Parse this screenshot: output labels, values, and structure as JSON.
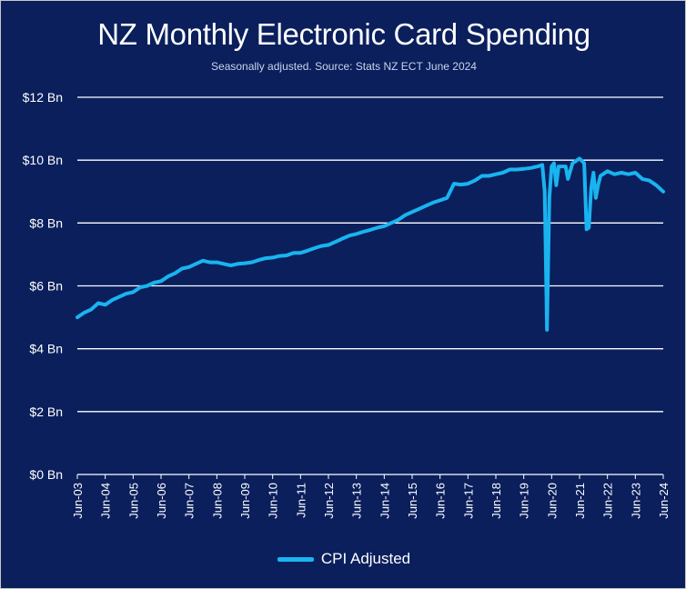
{
  "title": "NZ Monthly Electronic Card Spending",
  "subtitle": "Seasonally adjusted. Source: Stats NZ ECT June 2024",
  "colors": {
    "background": "#0a1f5c",
    "line": "#19b4f0",
    "grid": "#ffffff",
    "text": "#ffffff"
  },
  "chart_data": {
    "type": "line",
    "title": "NZ Monthly Electronic Card Spending",
    "subtitle": "Seasonally adjusted. Source: Stats NZ ECT June 2024",
    "xlabel": "",
    "ylabel": "",
    "ylim": [
      0,
      12
    ],
    "y_ticks": [
      0,
      2,
      4,
      6,
      8,
      10,
      12
    ],
    "y_tick_labels": [
      "$0 Bn",
      "$2 Bn",
      "$4 Bn",
      "$6 Bn",
      "$8 Bn",
      "$10 Bn",
      "$12 Bn"
    ],
    "x_tick_labels": [
      "Jun-03",
      "Jun-04",
      "Jun-05",
      "Jun-06",
      "Jun-07",
      "Jun-08",
      "Jun-09",
      "Jun-10",
      "Jun-11",
      "Jun-12",
      "Jun-13",
      "Jun-14",
      "Jun-15",
      "Jun-16",
      "Jun-17",
      "Jun-18",
      "Jun-19",
      "Jun-20",
      "Jun-21",
      "Jun-22",
      "Jun-23",
      "Jun-24"
    ],
    "grid": true,
    "legend_position": "bottom",
    "series": [
      {
        "name": "CPI Adjusted",
        "unit": "$ Bn",
        "points": [
          [
            "Jun-03",
            5.0
          ],
          [
            "Sep-03",
            5.15
          ],
          [
            "Dec-03",
            5.25
          ],
          [
            "Mar-04",
            5.45
          ],
          [
            "Jun-04",
            5.4
          ],
          [
            "Sep-04",
            5.55
          ],
          [
            "Dec-04",
            5.65
          ],
          [
            "Mar-05",
            5.75
          ],
          [
            "Jun-05",
            5.8
          ],
          [
            "Sep-05",
            5.95
          ],
          [
            "Dec-05",
            6.0
          ],
          [
            "Mar-06",
            6.1
          ],
          [
            "Jun-06",
            6.15
          ],
          [
            "Sep-06",
            6.3
          ],
          [
            "Dec-06",
            6.4
          ],
          [
            "Mar-07",
            6.55
          ],
          [
            "Jun-07",
            6.6
          ],
          [
            "Sep-07",
            6.7
          ],
          [
            "Dec-07",
            6.8
          ],
          [
            "Mar-08",
            6.75
          ],
          [
            "Jun-08",
            6.75
          ],
          [
            "Sep-08",
            6.7
          ],
          [
            "Dec-08",
            6.65
          ],
          [
            "Mar-09",
            6.7
          ],
          [
            "Jun-09",
            6.72
          ],
          [
            "Sep-09",
            6.75
          ],
          [
            "Dec-09",
            6.82
          ],
          [
            "Mar-10",
            6.88
          ],
          [
            "Jun-10",
            6.9
          ],
          [
            "Sep-10",
            6.95
          ],
          [
            "Dec-10",
            6.97
          ],
          [
            "Mar-11",
            7.05
          ],
          [
            "Jun-11",
            7.05
          ],
          [
            "Sep-11",
            7.12
          ],
          [
            "Dec-11",
            7.2
          ],
          [
            "Mar-12",
            7.27
          ],
          [
            "Jun-12",
            7.3
          ],
          [
            "Sep-12",
            7.4
          ],
          [
            "Dec-12",
            7.5
          ],
          [
            "Mar-13",
            7.6
          ],
          [
            "Jun-13",
            7.65
          ],
          [
            "Sep-13",
            7.72
          ],
          [
            "Dec-13",
            7.78
          ],
          [
            "Mar-14",
            7.85
          ],
          [
            "Jun-14",
            7.9
          ],
          [
            "Sep-14",
            8.0
          ],
          [
            "Dec-14",
            8.1
          ],
          [
            "Mar-15",
            8.25
          ],
          [
            "Jun-15",
            8.35
          ],
          [
            "Sep-15",
            8.45
          ],
          [
            "Dec-15",
            8.55
          ],
          [
            "Mar-16",
            8.65
          ],
          [
            "Jun-16",
            8.72
          ],
          [
            "Sep-16",
            8.8
          ],
          [
            "Dec-16",
            9.25
          ],
          [
            "Mar-17",
            9.22
          ],
          [
            "Jun-17",
            9.25
          ],
          [
            "Sep-17",
            9.35
          ],
          [
            "Dec-17",
            9.5
          ],
          [
            "Mar-18",
            9.5
          ],
          [
            "Jun-18",
            9.55
          ],
          [
            "Sep-18",
            9.6
          ],
          [
            "Dec-18",
            9.7
          ],
          [
            "Mar-19",
            9.7
          ],
          [
            "Jun-19",
            9.72
          ],
          [
            "Sep-19",
            9.75
          ],
          [
            "Dec-19",
            9.8
          ],
          [
            "Feb-20",
            9.85
          ],
          [
            "Mar-20",
            9.0
          ],
          [
            "Apr-20",
            4.6
          ],
          [
            "May-20",
            8.8
          ],
          [
            "Jun-20",
            9.8
          ],
          [
            "Jul-20",
            9.9
          ],
          [
            "Aug-20",
            9.2
          ],
          [
            "Sep-20",
            9.8
          ],
          [
            "Oct-20",
            9.8
          ],
          [
            "Dec-20",
            9.8
          ],
          [
            "Jan-21",
            9.4
          ],
          [
            "Mar-21",
            9.9
          ],
          [
            "Jun-21",
            10.05
          ],
          [
            "Aug-21",
            9.9
          ],
          [
            "Sep-21",
            7.8
          ],
          [
            "Oct-21",
            7.85
          ],
          [
            "Nov-21",
            9.1
          ],
          [
            "Dec-21",
            9.6
          ],
          [
            "Jan-22",
            8.8
          ],
          [
            "Feb-22",
            9.2
          ],
          [
            "Mar-22",
            9.5
          ],
          [
            "Jun-22",
            9.65
          ],
          [
            "Sep-22",
            9.55
          ],
          [
            "Dec-22",
            9.6
          ],
          [
            "Mar-23",
            9.55
          ],
          [
            "Jun-23",
            9.6
          ],
          [
            "Sep-23",
            9.4
          ],
          [
            "Dec-23",
            9.35
          ],
          [
            "Mar-24",
            9.2
          ],
          [
            "Jun-24",
            9.0
          ]
        ]
      }
    ]
  },
  "legend": {
    "label": "CPI Adjusted"
  }
}
